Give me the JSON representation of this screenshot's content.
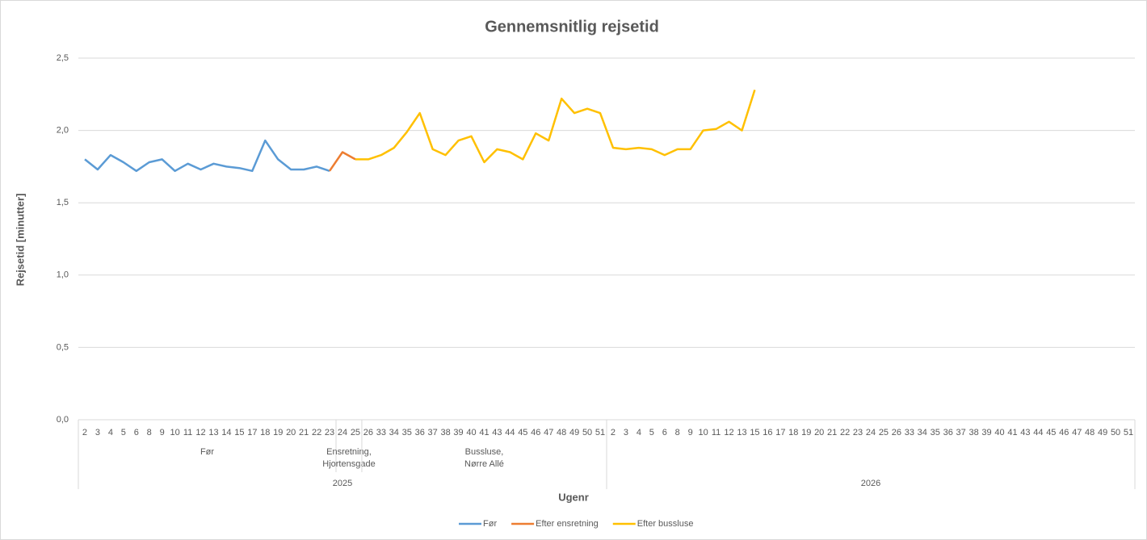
{
  "chart_data": {
    "type": "line",
    "title": "Gennemsnitlig rejsetid",
    "y_label": "Rejsetid [minutter]",
    "x_label": "Ugenr",
    "years": [
      {
        "label": "2025",
        "groups": [
          {
            "label": [
              "Før"
            ],
            "weeks": [
              "2",
              "3",
              "4",
              "5",
              "6",
              "8",
              "9",
              "10",
              "11",
              "12",
              "13",
              "14",
              "15",
              "17",
              "18",
              "19",
              "20",
              "21",
              "22",
              "23"
            ]
          },
          {
            "label": [
              "Ensretning,",
              "Hjortensgade"
            ],
            "weeks": [
              "24",
              "25"
            ]
          },
          {
            "label": [
              "Bussluse,",
              "Nørre Allé"
            ],
            "weeks": [
              "26",
              "33",
              "34",
              "35",
              "36",
              "37",
              "38",
              "39",
              "40",
              "41",
              "43",
              "44",
              "45",
              "46",
              "47",
              "48",
              "49",
              "50",
              "51"
            ]
          }
        ]
      },
      {
        "label": "2026",
        "groups": [
          {
            "weeks": [
              "2",
              "3",
              "4",
              "5",
              "6",
              "8",
              "9",
              "10",
              "11",
              "12",
              "13",
              "15",
              "16",
              "17",
              "18",
              "19",
              "20",
              "21",
              "22",
              "23",
              "24",
              "25",
              "26",
              "33",
              "34",
              "35",
              "36",
              "37",
              "38",
              "39",
              "40",
              "41",
              "43",
              "44",
              "45",
              "46",
              "47",
              "48",
              "49",
              "50",
              "51"
            ]
          }
        ]
      }
    ],
    "series": [
      {
        "name": "Før",
        "color": "#5b9bd5",
        "values": [
          1.8,
          1.73,
          1.83,
          1.78,
          1.72,
          1.78,
          1.8,
          1.72,
          1.77,
          1.73,
          1.77,
          1.75,
          1.74,
          1.72,
          1.93,
          1.8,
          1.73,
          1.73,
          1.75,
          1.72,
          null,
          null,
          null,
          null,
          null,
          null,
          null,
          null,
          null,
          null,
          null,
          null,
          null,
          null,
          null,
          null,
          null,
          null,
          null,
          null,
          null,
          null,
          null,
          null,
          null,
          null,
          null,
          null,
          null,
          null,
          null,
          null,
          null,
          null,
          null,
          null,
          null,
          null,
          null,
          null,
          null,
          null,
          null,
          null,
          null,
          null,
          null,
          null,
          null,
          null,
          null,
          null,
          null,
          null,
          null,
          null,
          null,
          null,
          null,
          null,
          null,
          null
        ]
      },
      {
        "name": "Efter ensretning",
        "color": "#ed7d31",
        "values": [
          null,
          null,
          null,
          null,
          null,
          null,
          null,
          null,
          null,
          null,
          null,
          null,
          null,
          null,
          null,
          null,
          null,
          null,
          null,
          1.72,
          1.85,
          1.8,
          null,
          null,
          null,
          null,
          null,
          null,
          null,
          null,
          null,
          null,
          null,
          null,
          null,
          null,
          null,
          null,
          null,
          null,
          null,
          null,
          null,
          null,
          null,
          null,
          null,
          null,
          null,
          null,
          null,
          null,
          null,
          null,
          null,
          null,
          null,
          null,
          null,
          null,
          null,
          null,
          null,
          null,
          null,
          null,
          null,
          null,
          null,
          null,
          null,
          null,
          null,
          null,
          null,
          null,
          null,
          null,
          null,
          null,
          null,
          null
        ]
      },
      {
        "name": "Efter bussluse",
        "color": "#ffc000",
        "values": [
          null,
          null,
          null,
          null,
          null,
          null,
          null,
          null,
          null,
          null,
          null,
          null,
          null,
          null,
          null,
          null,
          null,
          null,
          null,
          null,
          null,
          1.8,
          1.8,
          1.83,
          1.88,
          1.99,
          2.12,
          1.87,
          1.83,
          1.93,
          1.96,
          1.78,
          1.87,
          1.85,
          1.8,
          1.98,
          1.93,
          2.22,
          2.12,
          2.15,
          2.12,
          1.88,
          1.87,
          1.88,
          1.87,
          1.83,
          1.87,
          1.87,
          2.0,
          2.01,
          2.06,
          2.0,
          2.28,
          null,
          null,
          null,
          null,
          null,
          null,
          null,
          null,
          null,
          null,
          null,
          null,
          null,
          null,
          null,
          null,
          null,
          null,
          null,
          null,
          null,
          null,
          null,
          null,
          null,
          null,
          null,
          null,
          null
        ]
      }
    ],
    "ylim": [
      0,
      2.5
    ],
    "yticks": [
      {
        "value": 0,
        "label": "0,0"
      },
      {
        "value": 0.5,
        "label": "0,5"
      },
      {
        "value": 1,
        "label": "1,0"
      },
      {
        "value": 1.5,
        "label": "1,5"
      },
      {
        "value": 2,
        "label": "2,0"
      },
      {
        "value": 2.5,
        "label": "2,5"
      }
    ],
    "grid": true,
    "legend": "bottom"
  }
}
